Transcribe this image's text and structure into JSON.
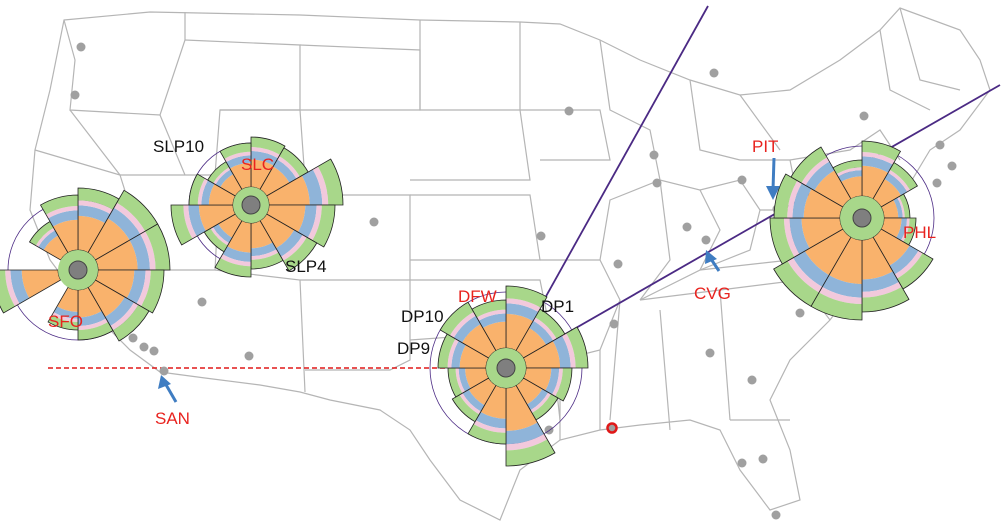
{
  "airports": [
    {
      "code": "SFO",
      "kind": "hub"
    },
    {
      "code": "SLC",
      "kind": "hub"
    },
    {
      "code": "DFW",
      "kind": "hub"
    },
    {
      "code": "PHL",
      "kind": "hub"
    },
    {
      "code": "SAN",
      "kind": "marked"
    },
    {
      "code": "PIT",
      "kind": "marked"
    },
    {
      "code": "CVG",
      "kind": "marked"
    }
  ],
  "runway_labels": [
    "SLP10",
    "SLP4",
    "DP10",
    "DP1",
    "DP9"
  ],
  "colors": {
    "hub_label": "#e8231f",
    "runway_label": "#111111",
    "marker_arrow": "#3f7dc2",
    "route_line": "#4b2a84",
    "reference_line": "#e01818",
    "state_border": "#b5b5b5",
    "sector_orange": "#f9b26c",
    "sector_blue": "#8fb4d9",
    "sector_green": "#a8d78a",
    "sector_pink": "#f2c9dc",
    "hub_center": "#7f7f7f"
  }
}
